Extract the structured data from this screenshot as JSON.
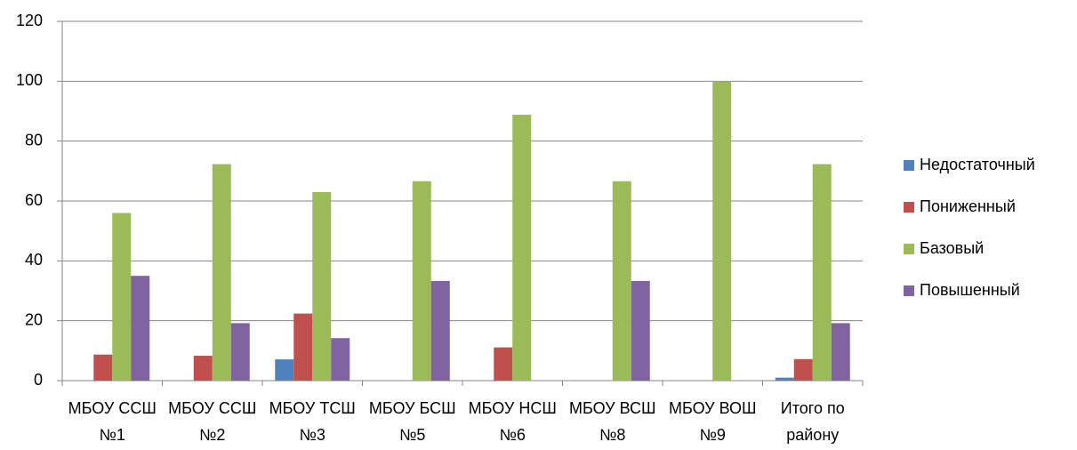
{
  "chart_data": {
    "type": "bar",
    "categories": [
      "МБОУ ССШ №1",
      "МБОУ ССШ №2",
      "МБОУ ТСШ №3",
      "МБОУ БСШ №5",
      "МБОУ НСШ №6",
      "МБОУ ВСШ №8",
      "МБОУ ВОШ №9",
      "Итого по району"
    ],
    "series": [
      {
        "name": "Недостаточный",
        "color": "#4f81bd",
        "values": [
          0,
          0,
          7.1,
          0,
          0,
          0,
          0,
          1
        ]
      },
      {
        "name": "Пониженный",
        "color": "#c0504d",
        "values": [
          8.7,
          8.3,
          22.4,
          0,
          11.1,
          0,
          0,
          7.2
        ]
      },
      {
        "name": "Базовый",
        "color": "#9bbb59",
        "values": [
          56,
          72.3,
          63,
          66.6,
          88.8,
          66.6,
          100,
          72.3
        ]
      },
      {
        "name": "Повышенный",
        "color": "#8064a2",
        "values": [
          35,
          19.2,
          14.2,
          33.3,
          0,
          33.3,
          0,
          19.2
        ]
      }
    ],
    "ylim": [
      0,
      120
    ],
    "yticks": [
      0,
      20,
      40,
      60,
      80,
      100,
      120
    ],
    "grid": true,
    "legend": "right"
  }
}
